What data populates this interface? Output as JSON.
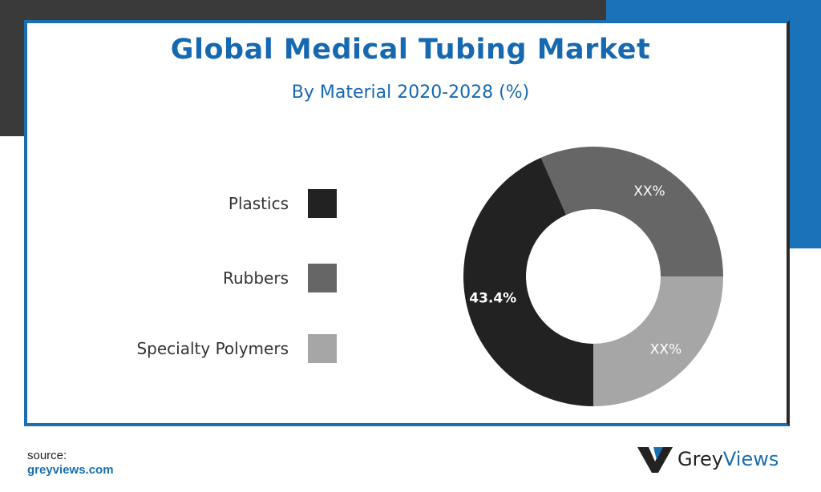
{
  "title": "Global Medical Tubing Market",
  "subtitle": "By Material 2020-2028 (%)",
  "source": {
    "label": "source:",
    "link": "greyviews.com"
  },
  "brand": {
    "part1": "Grey",
    "part2": "Views"
  },
  "colors": {
    "accent": "#1a6fb0",
    "plastics": "#222222",
    "rubbers": "#666666",
    "specialty": "#a6a6a6"
  },
  "chart_data": {
    "type": "pie",
    "title": "Global Medical Tubing Market",
    "subtitle": "By Material 2020-2028 (%)",
    "donut": true,
    "legend_position": "left",
    "slices": [
      {
        "name": "Plastics",
        "value": 43.4,
        "label": "43.4%",
        "color": "#222222"
      },
      {
        "name": "Rubbers",
        "value": 31.6,
        "label": "XX%",
        "color": "#666666"
      },
      {
        "name": "Specialty Polymers",
        "value": 25.0,
        "label": "XX%",
        "color": "#a6a6a6"
      }
    ]
  }
}
